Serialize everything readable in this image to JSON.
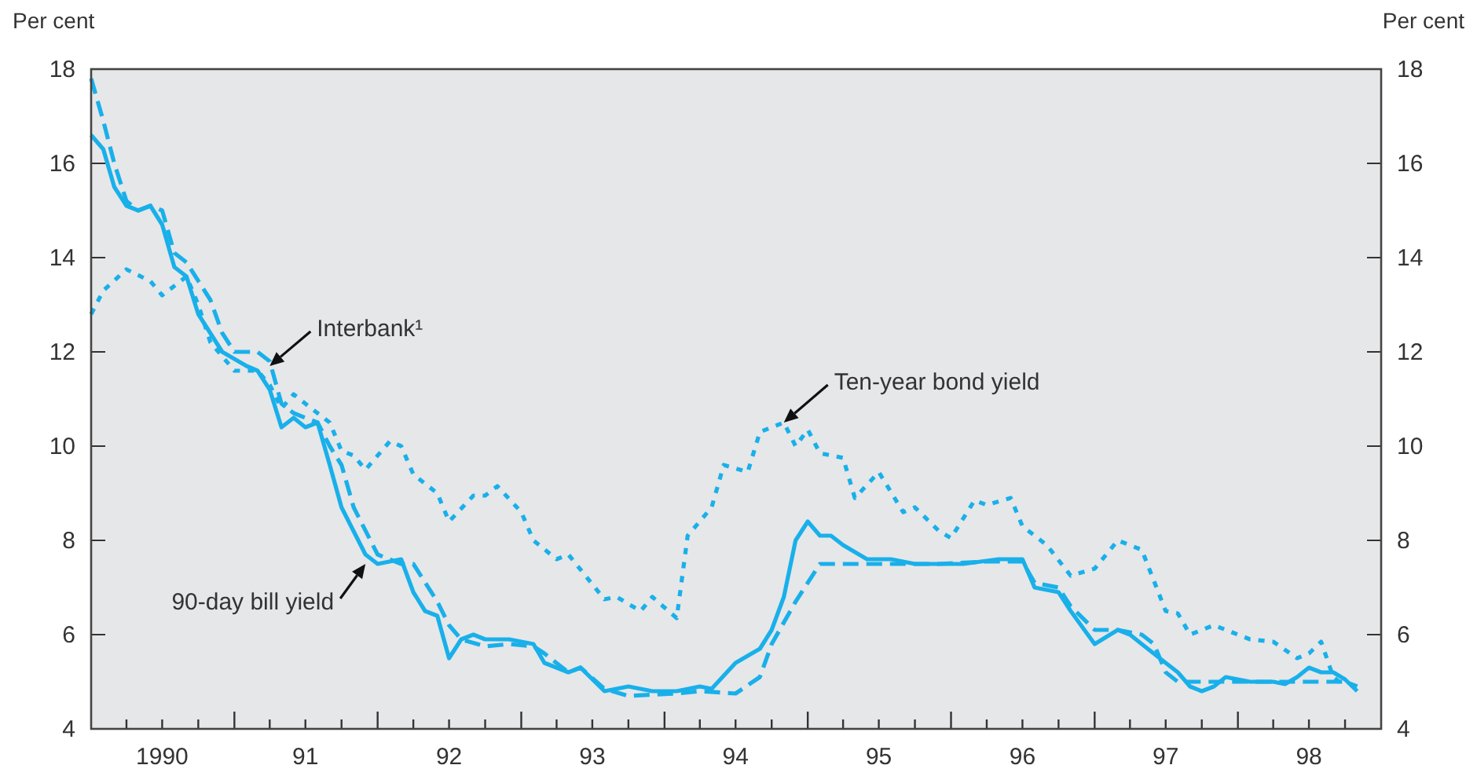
{
  "chart_data": {
    "type": "line",
    "ylabel": "Per cent",
    "y2label": "Per cent",
    "ylim": [
      4,
      18
    ],
    "yticks": [
      4,
      6,
      8,
      10,
      12,
      14,
      16,
      18
    ],
    "y2lim": [
      4,
      18
    ],
    "y2ticks": [
      4,
      6,
      8,
      10,
      12,
      14,
      16,
      18
    ],
    "xlim": [
      "1990-01",
      "1999-01"
    ],
    "xticks": [
      {
        "value": "1990-04",
        "label": null
      },
      {
        "value": "1990-07",
        "label": "1990"
      },
      {
        "value": "1990-10",
        "label": null
      },
      {
        "value": "1991-01",
        "label": null
      },
      {
        "value": "1991-04",
        "label": null
      },
      {
        "value": "1991-07",
        "label": "91"
      },
      {
        "value": "1991-10",
        "label": null
      },
      {
        "value": "1992-01",
        "label": null
      },
      {
        "value": "1992-04",
        "label": null
      },
      {
        "value": "1992-07",
        "label": "92"
      },
      {
        "value": "1992-10",
        "label": null
      },
      {
        "value": "1993-01",
        "label": null
      },
      {
        "value": "1993-04",
        "label": null
      },
      {
        "value": "1993-07",
        "label": "93"
      },
      {
        "value": "1993-10",
        "label": null
      },
      {
        "value": "1994-01",
        "label": null
      },
      {
        "value": "1994-04",
        "label": null
      },
      {
        "value": "1994-07",
        "label": "94"
      },
      {
        "value": "1994-10",
        "label": null
      },
      {
        "value": "1995-01",
        "label": null
      },
      {
        "value": "1995-04",
        "label": null
      },
      {
        "value": "1995-07",
        "label": "95"
      },
      {
        "value": "1995-10",
        "label": null
      },
      {
        "value": "1996-01",
        "label": null
      },
      {
        "value": "1996-04",
        "label": null
      },
      {
        "value": "1996-07",
        "label": "96"
      },
      {
        "value": "1996-10",
        "label": null
      },
      {
        "value": "1997-01",
        "label": null
      },
      {
        "value": "1997-04",
        "label": null
      },
      {
        "value": "1997-07",
        "label": "97"
      },
      {
        "value": "1997-10",
        "label": null
      },
      {
        "value": "1998-01",
        "label": null
      },
      {
        "value": "1998-04",
        "label": null
      },
      {
        "value": "1998-07",
        "label": "98"
      },
      {
        "value": "1998-10",
        "label": null
      }
    ],
    "series": [
      {
        "color": "#19b0ea",
        "line_style": "solid",
        "x": [
          "1990-01",
          "1990-02",
          "1990-03",
          "1990-04",
          "1990-05",
          "1990-06",
          "1990-07",
          "1990-08",
          "1990-09",
          "1990-10",
          "1990-12",
          "1991-02",
          "1991-03",
          "1991-04",
          "1991-05",
          "1991-06",
          "1991-07",
          "1991-08",
          "1991-09",
          "1991-10",
          "1991-12",
          "1992-01",
          "1992-03",
          "1992-04",
          "1992-05",
          "1992-06",
          "1992-07",
          "1992-08",
          "1992-09",
          "1992-10",
          "1992-12",
          "1993-02",
          "1993-03",
          "1993-05",
          "1993-06",
          "1993-08",
          "1993-10",
          "1993-12",
          "1994-02",
          "1994-04",
          "1994-05",
          "1994-07",
          "1994-09",
          "1994-10",
          "1994-11",
          "1994-12",
          "1995-01",
          "1995-02",
          "1995-03",
          "1995-04",
          "1995-06",
          "1995-08",
          "1995-10",
          "1995-12",
          "1996-02",
          "1996-05",
          "1996-07",
          "1996-08",
          "1996-10",
          "1996-11",
          "1997-01",
          "1997-03",
          "1997-04",
          "1997-05",
          "1997-07",
          "1997-08",
          "1997-09",
          "1997-10",
          "1997-11",
          "1997-12",
          "1998-02",
          "1998-04",
          "1998-05",
          "1998-06",
          "1998-07",
          "1998-08",
          "1998-09",
          "1998-10",
          "1998-11"
        ],
        "values": [
          16.6,
          16.3,
          15.5,
          15.1,
          15.0,
          15.1,
          14.7,
          13.8,
          13.6,
          12.8,
          12.0,
          11.7,
          11.6,
          11.2,
          10.4,
          10.6,
          10.4,
          10.5,
          9.6,
          8.7,
          7.7,
          7.5,
          7.6,
          6.9,
          6.5,
          6.4,
          5.5,
          5.9,
          6.0,
          5.9,
          5.9,
          5.8,
          5.4,
          5.2,
          5.3,
          4.8,
          4.9,
          4.8,
          4.8,
          4.9,
          4.85,
          5.4,
          5.7,
          6.1,
          6.8,
          8.0,
          8.4,
          8.1,
          8.1,
          7.9,
          7.6,
          7.6,
          7.5,
          7.5,
          7.5,
          7.6,
          7.6,
          7.0,
          6.9,
          6.5,
          5.8,
          6.1,
          6.0,
          5.8,
          5.4,
          5.2,
          4.9,
          4.8,
          4.9,
          5.1,
          5.0,
          5.0,
          4.95,
          5.1,
          5.3,
          5.2,
          5.2,
          5.05,
          4.8
        ]
      },
      {
        "color": "#19b0ea",
        "line_style": "dashed",
        "x": [
          "1990-01",
          "1990-02",
          "1990-03",
          "1990-04",
          "1990-05",
          "1990-06",
          "1990-07",
          "1990-08",
          "1990-09",
          "1990-11",
          "1990-12",
          "1991-01",
          "1991-03",
          "1991-04",
          "1991-05",
          "1991-06",
          "1991-08",
          "1991-09",
          "1991-10",
          "1991-11",
          "1992-01",
          "1992-03",
          "1992-04",
          "1992-06",
          "1992-07",
          "1992-08",
          "1992-10",
          "1992-12",
          "1993-02",
          "1993-03",
          "1993-05",
          "1993-06",
          "1993-08",
          "1993-10",
          "1994-02",
          "1994-04",
          "1994-07",
          "1994-09",
          "1994-10",
          "1994-12",
          "1995-02",
          "1995-04",
          "1995-06",
          "1995-09",
          "1995-12",
          "1996-04",
          "1996-07",
          "1996-08",
          "1996-10",
          "1996-11",
          "1997-01",
          "1997-03",
          "1997-05",
          "1997-06",
          "1997-07",
          "1997-08",
          "1997-11",
          "1998-01",
          "1998-04",
          "1998-07",
          "1998-08",
          "1998-10",
          "1998-11"
        ],
        "values": [
          17.8,
          16.9,
          16.0,
          15.2,
          15.0,
          15.1,
          15.0,
          14.1,
          13.9,
          13.1,
          12.4,
          12.0,
          12.0,
          11.8,
          10.9,
          10.7,
          10.5,
          10.0,
          9.6,
          8.7,
          7.7,
          7.5,
          7.5,
          6.7,
          6.2,
          5.9,
          5.75,
          5.8,
          5.75,
          5.6,
          5.2,
          5.3,
          4.85,
          4.7,
          4.75,
          4.8,
          4.75,
          5.1,
          5.8,
          6.7,
          7.5,
          7.5,
          7.5,
          7.5,
          7.5,
          7.55,
          7.55,
          7.1,
          7.0,
          6.6,
          6.1,
          6.1,
          6.0,
          5.8,
          5.2,
          5.0,
          5.0,
          5.0,
          5.0,
          5.0,
          5.0,
          5.0,
          4.9
        ]
      },
      {
        "color": "#19b0ea",
        "line_style": "dotted",
        "x": [
          "1990-01",
          "1990-02",
          "1990-04",
          "1990-06",
          "1990-07",
          "1990-09",
          "1990-10",
          "1990-11",
          "1991-01",
          "1991-03",
          "1991-04",
          "1991-05",
          "1991-06",
          "1991-07",
          "1991-09",
          "1991-10",
          "1991-11",
          "1991-12",
          "1992-02",
          "1992-03",
          "1992-04",
          "1992-06",
          "1992-07",
          "1992-09",
          "1992-10",
          "1992-11",
          "1993-01",
          "1993-02",
          "1993-04",
          "1993-05",
          "1993-08",
          "1993-09",
          "1993-11",
          "1993-12",
          "1994-02",
          "1994-03",
          "1994-05",
          "1994-06",
          "1994-08",
          "1994-09",
          "1994-11",
          "1994-12",
          "1995-01",
          "1995-02",
          "1995-04",
          "1995-05",
          "1995-07",
          "1995-09",
          "1995-10",
          "1995-12",
          "1996-01",
          "1996-03",
          "1996-04",
          "1996-06",
          "1996-07",
          "1996-09",
          "1996-11",
          "1997-01",
          "1997-03",
          "1997-05",
          "1997-07",
          "1997-08",
          "1997-09",
          "1997-11",
          "1998-01",
          "1998-02",
          "1998-04",
          "1998-06",
          "1998-07",
          "1998-08",
          "1998-09",
          "1998-10"
        ],
        "values": [
          12.8,
          13.3,
          13.75,
          13.5,
          13.2,
          13.6,
          13.0,
          12.2,
          11.6,
          11.6,
          11.3,
          10.8,
          11.1,
          10.9,
          10.5,
          9.9,
          9.8,
          9.5,
          10.1,
          10.0,
          9.4,
          9.0,
          8.4,
          8.95,
          8.95,
          9.15,
          8.6,
          8.0,
          7.6,
          7.7,
          6.75,
          6.8,
          6.5,
          6.8,
          6.35,
          8.1,
          8.7,
          9.6,
          9.45,
          10.3,
          10.5,
          10.0,
          10.35,
          9.85,
          9.75,
          8.9,
          9.45,
          8.6,
          8.7,
          8.2,
          8.05,
          8.85,
          8.75,
          8.9,
          8.3,
          7.9,
          7.25,
          7.4,
          8.0,
          7.8,
          6.5,
          6.45,
          6.0,
          6.2,
          6.0,
          5.9,
          5.85,
          5.5,
          5.6,
          5.85,
          5.1,
          4.9
        ]
      }
    ],
    "annotations": [
      {
        "text": "Interbank¹",
        "x": "1991-04",
        "y": 11.7
      },
      {
        "text": "Ten-year bond yield",
        "x": "1994-11",
        "y": 10.5
      },
      {
        "text": "90-day bill yield",
        "x": "1991-12",
        "y": 7.5
      }
    ]
  }
}
